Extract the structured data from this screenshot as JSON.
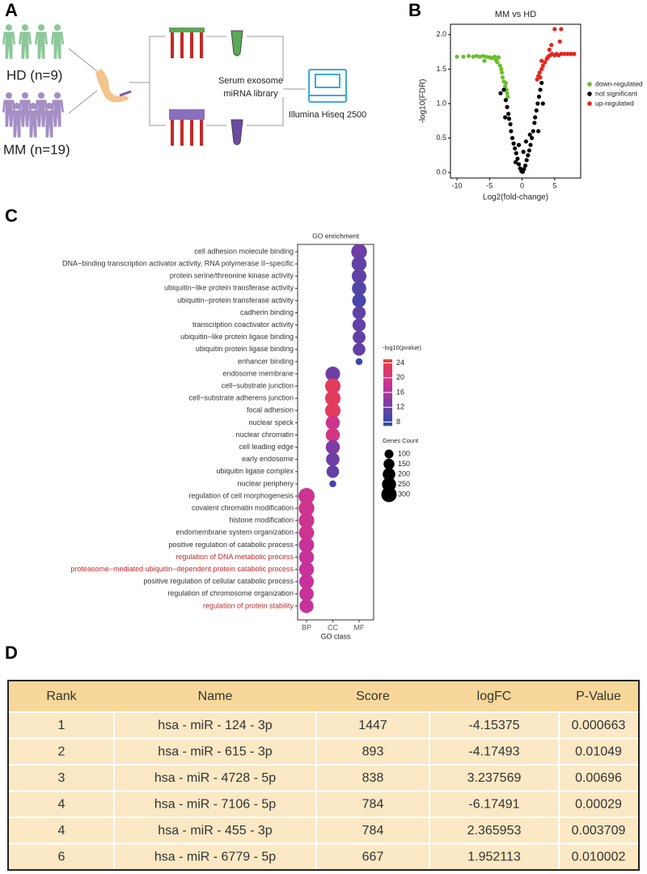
{
  "panel_labels": [
    "A",
    "B",
    "C",
    "D"
  ],
  "workflow": {
    "groups": [
      "HD (n=9)",
      "MM (n=19)"
    ],
    "library": [
      "Serum exosome",
      "miRNA library"
    ],
    "sequencer": "Illumina Hiseq 2500"
  },
  "chart_data": [
    {
      "type": "scatter",
      "title": "MM vs HD",
      "x_label": "Log2(fold-change)",
      "y_label": "-log10(FDR)",
      "xlim": [
        -11,
        9
      ],
      "ylim": [
        -0.08,
        2.15
      ],
      "xticks": [
        -10,
        -5,
        0,
        5
      ],
      "yticks": [
        {
          "value": 0,
          "label": "0.0"
        },
        {
          "value": 0.5,
          "label": "0.5"
        },
        {
          "value": 1,
          "label": "1.0"
        },
        {
          "value": 1.5,
          "label": "1.5"
        },
        {
          "value": 2,
          "label": "2.0"
        }
      ],
      "series": [
        {
          "name": "down-regulated",
          "color": "#6abf2e",
          "x": [
            -10,
            -9,
            -8.2,
            -7.5,
            -7,
            -6.5,
            -6,
            -5.5,
            -5,
            -4.6,
            -4.2,
            -4,
            -3.8,
            -3.6,
            -3.4,
            -3.2,
            -3.1,
            -3,
            -2.8,
            -2.6,
            -2.5,
            -2.4,
            -2.3,
            -5.8,
            -2.2
          ],
          "y": [
            1.68,
            1.68,
            1.69,
            1.68,
            1.69,
            1.68,
            1.69,
            1.68,
            1.67,
            1.66,
            1.68,
            1.63,
            1.6,
            1.67,
            1.55,
            1.5,
            1.45,
            1.38,
            1.32,
            1.25,
            1.3,
            1.2,
            1.15,
            1.62,
            1.1
          ]
        },
        {
          "name": "not significant",
          "color": "#000000",
          "x": [
            -2.8,
            -2.5,
            -2.3,
            -2.1,
            -2,
            -1.8,
            -1.7,
            -1.5,
            -1.3,
            -1.1,
            -0.9,
            -0.7,
            -0.5,
            -0.3,
            -0.1,
            0.1,
            0.3,
            0.5,
            0.7,
            0.9,
            1.1,
            1.3,
            1.5,
            1.7,
            1.9,
            2,
            2.2,
            2.4,
            2.6,
            2.8,
            3,
            -3.3,
            -1,
            0.2,
            1.2,
            3.2,
            -2.6,
            2.5,
            -0.5,
            0.6
          ],
          "y": [
            1.2,
            1.05,
            0.95,
            0.85,
            0.78,
            0.7,
            0.6,
            0.5,
            0.42,
            0.35,
            0.28,
            0.2,
            0.12,
            0.06,
            0.02,
            0.01,
            0.05,
            0.1,
            0.18,
            0.25,
            0.32,
            0.4,
            0.5,
            0.6,
            0.72,
            0.8,
            0.9,
            1,
            1.1,
            1.2,
            1.3,
            1.15,
            0.15,
            0.3,
            0.55,
            1,
            0.8,
            0.6,
            0.4,
            0.45
          ]
        },
        {
          "name": "up-regulated",
          "color": "#e3261f",
          "x": [
            2.3,
            2.5,
            2.7,
            3,
            3.2,
            3.5,
            3.8,
            4,
            4.3,
            4.6,
            5,
            5.3,
            5.6,
            6,
            6.5,
            7,
            7.5,
            8,
            5,
            6,
            4.5,
            3,
            2.8,
            5.8,
            4.2
          ],
          "y": [
            1.35,
            1.4,
            1.45,
            1.5,
            1.55,
            1.6,
            1.65,
            1.68,
            1.7,
            1.72,
            1.7,
            1.72,
            1.7,
            1.72,
            1.72,
            1.72,
            1.72,
            1.72,
            2.08,
            2.08,
            1.85,
            1.62,
            1.38,
            1.9,
            1.78
          ]
        }
      ]
    },
    {
      "type": "dot",
      "title": "GO enrichment",
      "x_label": "GO class",
      "categories": [
        "BP",
        "CC",
        "MF"
      ],
      "highlight_color": "#c0272d",
      "color_legend": {
        "title": "-log10(pvalue)",
        "clim": [
          7,
          25
        ],
        "ticks": [
          8,
          12,
          16,
          20,
          24
        ]
      },
      "size_legend": {
        "title": "Genes Count",
        "sizes": [
          100,
          150,
          200,
          250,
          300
        ]
      },
      "terms": [
        {
          "label": "cell adhesion molecule binding",
          "class": 2,
          "pvalue": 12,
          "count": 310
        },
        {
          "label": "DNA−binding transcription activator activity, RNA polymerase II−specific",
          "class": 2,
          "pvalue": 11,
          "count": 280
        },
        {
          "label": "protein serine/threonine kinase activity",
          "class": 2,
          "pvalue": 11,
          "count": 270
        },
        {
          "label": "ubiquitin−like protein transferase activity",
          "class": 2,
          "pvalue": 10,
          "count": 260
        },
        {
          "label": "ubiquitin−protein transferase activity",
          "class": 2,
          "pvalue": 9,
          "count": 240
        },
        {
          "label": "cadherin binding",
          "class": 2,
          "pvalue": 11,
          "count": 220
        },
        {
          "label": "transcription coactivator activity",
          "class": 2,
          "pvalue": 11,
          "count": 220
        },
        {
          "label": "ubiquitin−like protein ligase binding",
          "class": 2,
          "pvalue": 11,
          "count": 210
        },
        {
          "label": "ubiquitin protein ligase binding",
          "class": 2,
          "pvalue": 11,
          "count": 200
        },
        {
          "label": "enhancer binding",
          "class": 2,
          "pvalue": 8,
          "count": 60
        },
        {
          "label": "endosome membrane",
          "class": 1,
          "pvalue": 12,
          "count": 270
        },
        {
          "label": "cell−substrate junction",
          "class": 1,
          "pvalue": 23,
          "count": 300
        },
        {
          "label": "cell−substrate adherens junction",
          "class": 1,
          "pvalue": 23,
          "count": 300
        },
        {
          "label": "focal adhesion",
          "class": 1,
          "pvalue": 23,
          "count": 300
        },
        {
          "label": "nuclear speck",
          "class": 1,
          "pvalue": 19,
          "count": 250
        },
        {
          "label": "nuclear chromatin",
          "class": 1,
          "pvalue": 20,
          "count": 250
        },
        {
          "label": "cell leading edge",
          "class": 1,
          "pvalue": 13,
          "count": 250
        },
        {
          "label": "early endosome",
          "class": 1,
          "pvalue": 12,
          "count": 230
        },
        {
          "label": "ubiquitin ligase complex",
          "class": 1,
          "pvalue": 11,
          "count": 200
        },
        {
          "label": "nuclear periphery",
          "class": 1,
          "pvalue": 9,
          "count": 60
        },
        {
          "label": "regulation of cell morphogenesis",
          "class": 0,
          "pvalue": 19,
          "count": 330
        },
        {
          "label": "covalent chromatin modification",
          "class": 0,
          "pvalue": 19,
          "count": 310
        },
        {
          "label": "histone modification",
          "class": 0,
          "pvalue": 19,
          "count": 300
        },
        {
          "label": "endomembrane system organization",
          "class": 0,
          "pvalue": 19,
          "count": 290
        },
        {
          "label": "positive regulation of catabolic process",
          "class": 0,
          "pvalue": 18,
          "count": 290
        },
        {
          "label": "regulation of DNA metabolic process",
          "class": 0,
          "pvalue": 18,
          "count": 280,
          "highlighted": true
        },
        {
          "label": "proteasome−mediated ubiquitin−dependent protein catabolic process",
          "class": 0,
          "pvalue": 18,
          "count": 280,
          "highlighted": true
        },
        {
          "label": "positive regulation of cellular catabolic process",
          "class": 0,
          "pvalue": 18,
          "count": 270
        },
        {
          "label": "regulation of chromosome organization",
          "class": 0,
          "pvalue": 18,
          "count": 260
        },
        {
          "label": "regulation of protein stability",
          "class": 0,
          "pvalue": 18,
          "count": 250,
          "highlighted": true
        }
      ]
    }
  ],
  "table": {
    "header": [
      "Rank",
      "Name",
      "Score",
      "logFC",
      "P-Value"
    ],
    "rows": [
      [
        1,
        "hsa - miR - 124 - 3p",
        1447,
        -4.15375,
        0.000663
      ],
      [
        2,
        "hsa - miR - 615 - 3p",
        893,
        -4.17493,
        0.01049
      ],
      [
        3,
        "hsa - miR - 4728 - 5p",
        838,
        3.237569,
        0.00696
      ],
      [
        4,
        "hsa - miR - 7106 - 5p",
        784,
        -6.17491,
        0.00029
      ],
      [
        4,
        "hsa - miR - 455 - 3p",
        784,
        2.365953,
        0.003709
      ],
      [
        6,
        "hsa - miR - 6779 - 5p",
        667,
        1.952113,
        0.010002
      ]
    ]
  }
}
